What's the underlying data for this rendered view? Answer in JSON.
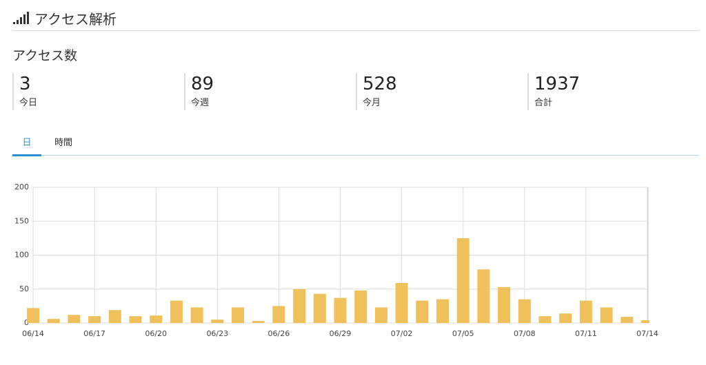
{
  "header": {
    "title": "アクセス解析"
  },
  "section_title": "アクセス数",
  "stats": [
    {
      "value": 3,
      "label": "今日"
    },
    {
      "value": 89,
      "label": "今週"
    },
    {
      "value": 528,
      "label": "今月"
    },
    {
      "value": 1937,
      "label": "合計"
    }
  ],
  "tabs": [
    "日",
    "時間"
  ],
  "chart_data": {
    "type": "bar",
    "categories": [
      "06/14",
      null,
      null,
      "06/17",
      null,
      null,
      "06/20",
      null,
      null,
      "06/23",
      null,
      null,
      "06/26",
      null,
      null,
      "06/29",
      null,
      null,
      "07/02",
      null,
      null,
      "07/05",
      null,
      null,
      "07/08",
      null,
      null,
      "07/11",
      null,
      null,
      "07/14"
    ],
    "values": [
      22,
      6,
      12,
      10,
      19,
      10,
      11,
      33,
      23,
      5,
      23,
      3,
      25,
      50,
      43,
      37,
      48,
      23,
      59,
      33,
      35,
      125,
      79,
      53,
      35,
      10,
      14,
      33,
      23,
      9,
      4
    ],
    "color": "#f0c05a",
    "ylim": [
      0,
      200
    ],
    "yticks": [
      0,
      50,
      100,
      150,
      200
    ],
    "grid": true
  }
}
